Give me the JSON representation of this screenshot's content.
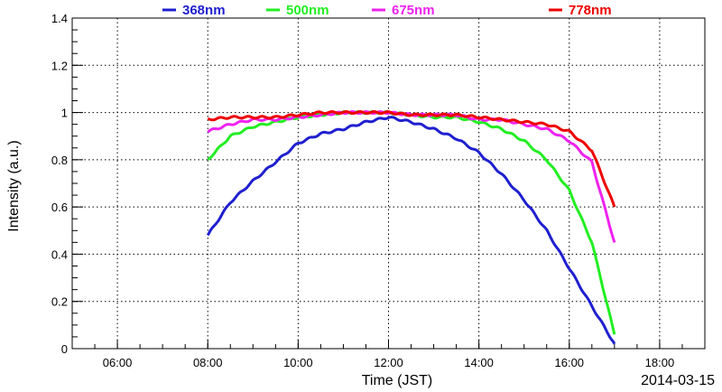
{
  "chart_data": {
    "type": "line",
    "title": "",
    "xlabel": "Time (JST)",
    "ylabel": "Intensity (a.u.)",
    "date_label": "2014-03-15",
    "xlim": [
      "05:00",
      "19:00"
    ],
    "ylim": [
      0,
      1.4
    ],
    "x_ticks": [
      "06:00",
      "08:00",
      "10:00",
      "12:00",
      "14:00",
      "16:00",
      "18:00"
    ],
    "y_ticks": [
      "0",
      "0.2",
      "0.4",
      "0.6",
      "0.8",
      "1",
      "1.2",
      "1.4"
    ],
    "grid": true,
    "legend_position": "top",
    "x": [
      "08:00",
      "08:30",
      "09:00",
      "09:30",
      "10:00",
      "10:30",
      "11:00",
      "11:30",
      "12:00",
      "12:30",
      "13:00",
      "13:30",
      "14:00",
      "14:30",
      "15:00",
      "15:30",
      "16:00",
      "16:30",
      "17:00"
    ],
    "series": [
      {
        "name": "368nm",
        "color": "#1f1fd0",
        "values": [
          0.48,
          0.62,
          0.71,
          0.79,
          0.87,
          0.91,
          0.93,
          0.96,
          0.98,
          0.96,
          0.93,
          0.89,
          0.83,
          0.74,
          0.63,
          0.5,
          0.34,
          0.18,
          0.02
        ]
      },
      {
        "name": "500nm",
        "color": "#22ee22",
        "values": [
          0.8,
          0.9,
          0.94,
          0.96,
          0.98,
          0.99,
          1.0,
          1.0,
          1.0,
          0.99,
          0.98,
          0.98,
          0.96,
          0.93,
          0.88,
          0.8,
          0.67,
          0.45,
          0.06
        ]
      },
      {
        "name": "675nm",
        "color": "#ee22ee",
        "values": [
          0.92,
          0.95,
          0.97,
          0.97,
          0.98,
          0.99,
          1.0,
          1.0,
          1.0,
          0.99,
          0.99,
          0.99,
          0.97,
          0.97,
          0.95,
          0.93,
          0.88,
          0.79,
          0.45
        ]
      },
      {
        "name": "778nm",
        "color": "#ee0000",
        "values": [
          0.97,
          0.98,
          0.98,
          0.98,
          0.99,
          1.0,
          1.0,
          1.0,
          1.0,
          0.99,
          0.99,
          0.99,
          0.98,
          0.97,
          0.96,
          0.95,
          0.92,
          0.84,
          0.6
        ]
      }
    ]
  }
}
